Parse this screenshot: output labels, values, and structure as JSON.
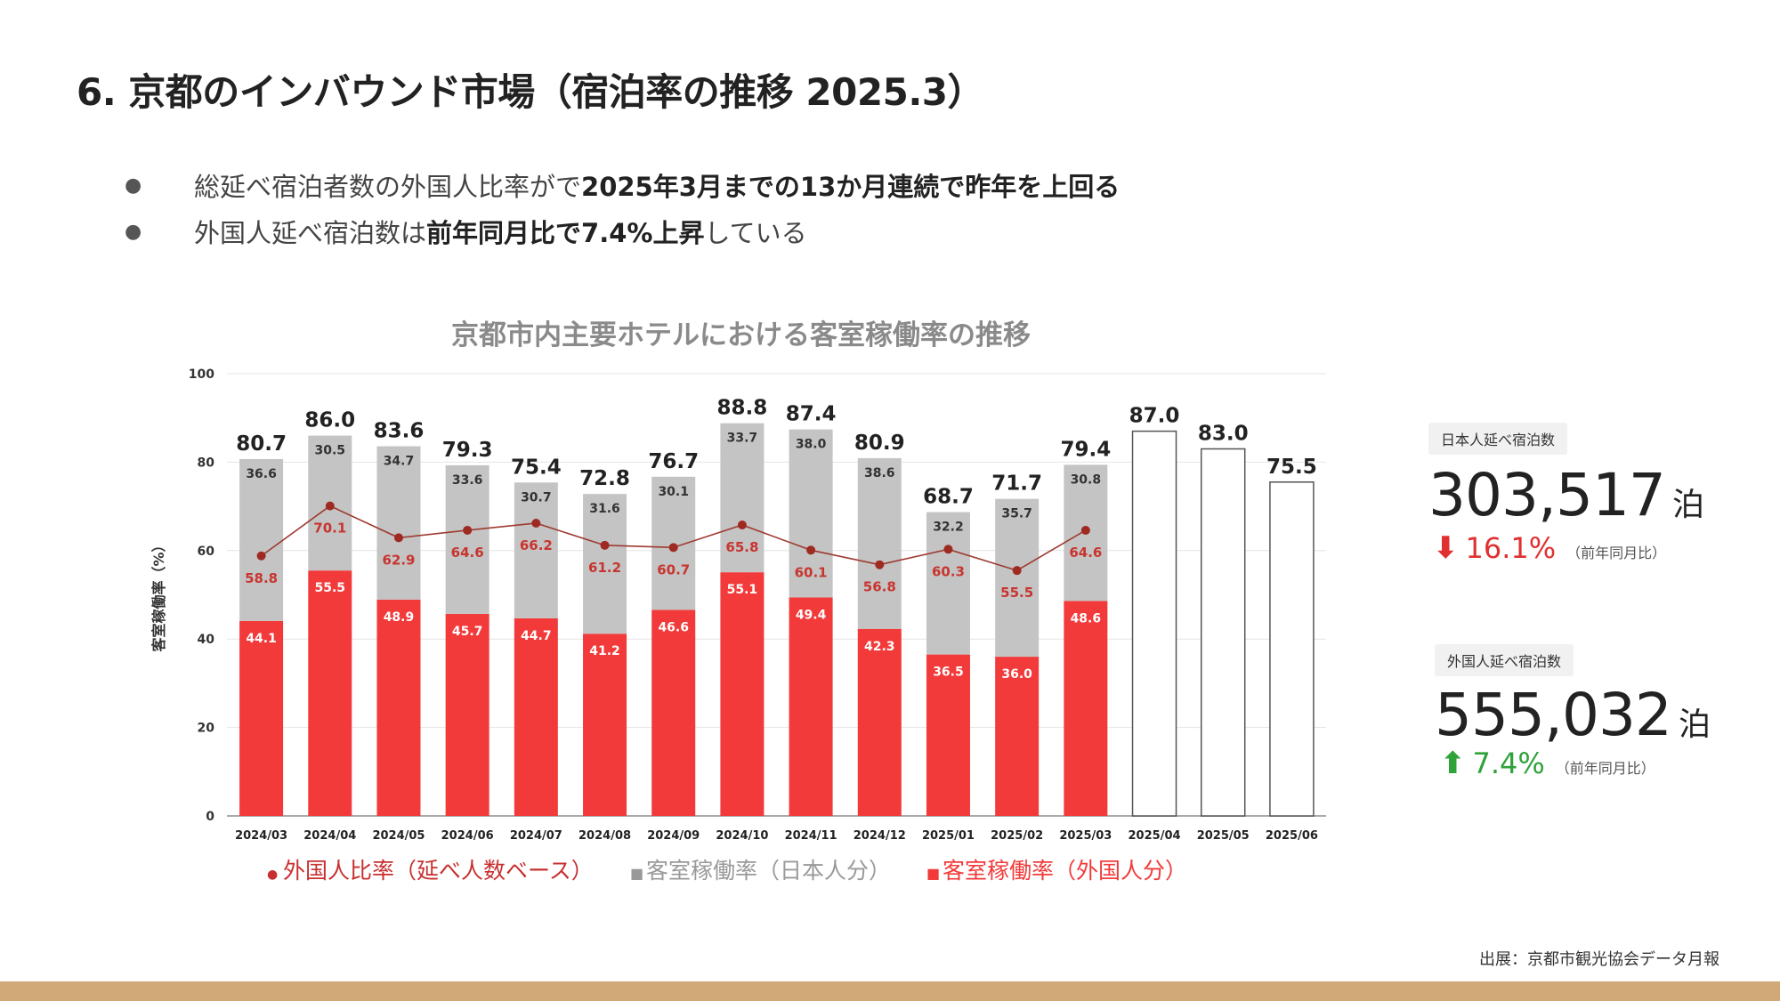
{
  "slide": {
    "title": "6. 京都のインバウンド市場（宿泊率の推移 2025.3）",
    "bullets": [
      {
        "normal": "総延べ宿泊者数の外国人比率がで ",
        "bold": "2025年3月までの13か月連続で昨年を上回る",
        "after": ""
      },
      {
        "normal": "外国人延べ宿泊数は ",
        "bold": "前年同月比で7.4%上昇",
        "after": " している"
      }
    ],
    "source": "出展：京都市観光協会データ月報"
  },
  "stats": {
    "japanese": {
      "label": "日本人延べ宿泊数",
      "value": "303,517",
      "unit": "泊",
      "arrow": "⬇",
      "change": "16.1%",
      "note": "（前年同月比）",
      "color": "#e03030"
    },
    "foreign": {
      "label": "外国人延べ宿泊数",
      "value": "555,032",
      "unit": "泊",
      "arrow": "⬆",
      "change": "7.4%",
      "note": "（前年同月比）",
      "color": "#2fa23a"
    }
  },
  "chart_data": {
    "type": "bar",
    "title": "京都市内主要ホテルにおける客室稼働率の推移",
    "ylabel": "客室稼働率（%）",
    "ylim": [
      0,
      100
    ],
    "yticks": [
      0,
      20,
      40,
      60,
      80,
      100
    ],
    "grid": true,
    "legend_position": "bottom",
    "categories": [
      "2024/03",
      "2024/04",
      "2024/05",
      "2024/06",
      "2024/07",
      "2024/08",
      "2024/09",
      "2024/10",
      "2024/11",
      "2024/12",
      "2025/01",
      "2025/02",
      "2025/03",
      "2025/04",
      "2025/05",
      "2025/06"
    ],
    "totals": [
      "80.7",
      "86.0",
      "83.6",
      "79.3",
      "75.4",
      "72.8",
      "76.7",
      "88.8",
      "87.4",
      "80.9",
      "68.7",
      "71.7",
      "79.4",
      "87.0",
      "83.0",
      "75.5"
    ],
    "series": [
      {
        "name": "客室稼働率（外国人分）",
        "type": "bar",
        "color": "#f23a3a",
        "values": [
          44.1,
          55.5,
          48.9,
          45.7,
          44.7,
          41.2,
          46.6,
          55.1,
          49.4,
          42.3,
          36.5,
          36.0,
          48.6,
          null,
          null,
          null
        ]
      },
      {
        "name": "客室稼働率（日本人分）",
        "type": "bar",
        "color": "#c4c4c4",
        "values": [
          36.6,
          30.5,
          34.7,
          33.6,
          30.7,
          31.6,
          30.1,
          33.7,
          38.0,
          38.6,
          32.2,
          35.7,
          30.8,
          null,
          null,
          null
        ]
      },
      {
        "name": "外国人比率（延べ人数ベース）",
        "type": "line",
        "color": "#9e3a2f",
        "values": [
          58.8,
          70.1,
          62.9,
          64.6,
          66.2,
          61.2,
          60.7,
          65.8,
          60.1,
          56.8,
          60.3,
          55.5,
          64.6,
          null,
          null,
          null
        ]
      }
    ],
    "forecast_totals": [
      null,
      null,
      null,
      null,
      null,
      null,
      null,
      null,
      null,
      null,
      null,
      null,
      null,
      87.0,
      83.0,
      75.5
    ],
    "legend": [
      {
        "marker": "●",
        "label": "外国人比率（延べ人数ベース）",
        "color": "#c83030"
      },
      {
        "marker": "■",
        "label": "客室稼働率（日本人分）",
        "color": "#999999"
      },
      {
        "marker": "■",
        "label": "客室稼働率（外国人分）",
        "color": "#f23a3a"
      }
    ]
  }
}
